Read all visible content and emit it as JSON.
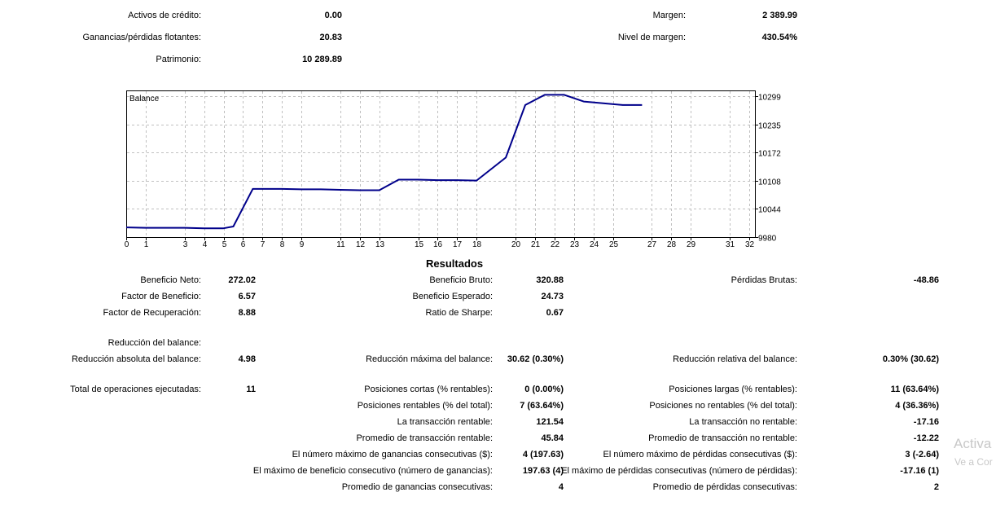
{
  "account": {
    "credit_label": "Activos de crédito:",
    "credit_value": "0.00",
    "floating_label": "Ganancias/pérdidas flotantes:",
    "floating_value": "20.83",
    "equity_label": "Patrimonio:",
    "equity_value": "10 289.89",
    "margin_label": "Margen:",
    "margin_value": "2 389.99",
    "margin_level_label": "Nivel de margen:",
    "margin_level_value": "430.54%"
  },
  "chart_data": {
    "type": "line",
    "title": "Balance",
    "x_ticks": [
      0,
      1,
      3,
      4,
      5,
      6,
      7,
      8,
      9,
      11,
      12,
      13,
      15,
      16,
      17,
      18,
      20,
      21,
      22,
      23,
      24,
      25,
      27,
      28,
      29,
      31,
      32
    ],
    "y_ticks": [
      9980,
      10044,
      10108,
      10172,
      10235,
      10299
    ],
    "xlim": [
      0,
      32.3
    ],
    "ylim": [
      9980,
      10312
    ],
    "grid": true,
    "series": [
      {
        "color": "#00008b",
        "points": [
          [
            0,
            10002
          ],
          [
            1,
            10001
          ],
          [
            3,
            10001
          ],
          [
            4,
            10000
          ],
          [
            5,
            10000
          ],
          [
            5.5,
            10004
          ],
          [
            6.5,
            10089
          ],
          [
            8,
            10089
          ],
          [
            9,
            10088
          ],
          [
            10,
            10088
          ],
          [
            11,
            10087
          ],
          [
            12,
            10086
          ],
          [
            13,
            10086
          ],
          [
            14,
            10110
          ],
          [
            15,
            10110
          ],
          [
            16,
            10109
          ],
          [
            17,
            10109
          ],
          [
            18,
            10108
          ],
          [
            19.5,
            10160
          ],
          [
            20.5,
            10279
          ],
          [
            21.5,
            10302
          ],
          [
            22.5,
            10302
          ],
          [
            23.5,
            10287
          ],
          [
            24.5,
            10283
          ],
          [
            25.5,
            10279
          ],
          [
            26.5,
            10279
          ]
        ]
      }
    ]
  },
  "results": {
    "title": "Resultados",
    "net_profit_label": "Beneficio Neto:",
    "net_profit_value": "272.02",
    "gross_profit_label": "Beneficio Bruto:",
    "gross_profit_value": "320.88",
    "gross_loss_label": "Pérdidas Brutas:",
    "gross_loss_value": "-48.86",
    "profit_factor_label": "Factor de Beneficio:",
    "profit_factor_value": "6.57",
    "expected_payoff_label": "Beneficio Esperado:",
    "expected_payoff_value": "24.73",
    "recovery_factor_label": "Factor de Recuperación:",
    "recovery_factor_value": "8.88",
    "sharpe_label": "Ratio de Sharpe:",
    "sharpe_value": "0.67",
    "drawdown_header": "Reducción del balance:",
    "abs_drawdown_label": "Reducción absoluta del balance:",
    "abs_drawdown_value": "4.98",
    "max_drawdown_label": "Reducción máxima del balance:",
    "max_drawdown_value": "30.62 (0.30%)",
    "rel_drawdown_label": "Reducción relativa del balance:",
    "rel_drawdown_value": "0.30% (30.62)",
    "total_trades_label": "Total de operaciones ejecutadas:",
    "total_trades_value": "11",
    "short_label": "Posiciones cortas (% rentables):",
    "short_value": "0 (0.00%)",
    "long_label": "Posiciones largas (% rentables):",
    "long_value": "11 (63.64%)",
    "profit_trades_label": "Posiciones rentables (% del total):",
    "profit_trades_value": "7 (63.64%)",
    "loss_trades_label": "Posiciones no rentables (% del total):",
    "loss_trades_value": "4 (36.36%)",
    "largest_profit_label": "La transacción rentable:",
    "largest_profit_value": "121.54",
    "largest_loss_label": "La transacción no rentable:",
    "largest_loss_value": "-17.16",
    "avg_profit_label": "Promedio de transacción rentable:",
    "avg_profit_value": "45.84",
    "avg_loss_label": "Promedio de transacción no rentable:",
    "avg_loss_value": "-12.22",
    "max_cons_wins_label": "El número máximo de ganancias consecutivas ($):",
    "max_cons_wins_value": "4 (197.63)",
    "max_cons_losses_label": "El número máximo de pérdidas consecutivas ($):",
    "max_cons_losses_value": "3 (-2.64)",
    "max_cons_profit_label": "El máximo de beneficio consecutivo (número de ganancias):",
    "max_cons_profit_value": "197.63 (4)",
    "max_cons_loss_label": "El máximo de pérdidas consecutivas (número de pérdidas):",
    "max_cons_loss_value": "-17.16 (1)",
    "avg_cons_wins_label": "Promedio de ganancias consecutivas:",
    "avg_cons_wins_value": "4",
    "avg_cons_losses_label": "Promedio de pérdidas consecutivas:",
    "avg_cons_losses_value": "2"
  },
  "watermark": {
    "line1": "Activa",
    "line2": "Ve a Cor"
  }
}
